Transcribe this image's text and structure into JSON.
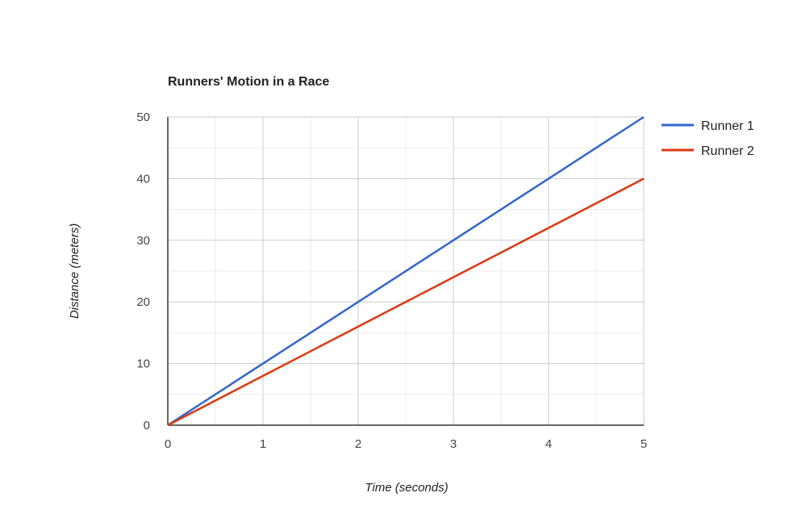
{
  "chart_data": {
    "type": "line",
    "title": "Runners' Motion in a Race",
    "xlabel": "Time (seconds)",
    "ylabel": "Distance (meters)",
    "xlim": [
      0,
      5
    ],
    "ylim": [
      0,
      50
    ],
    "xticks": [
      "0",
      "1",
      "2",
      "3",
      "4",
      "5"
    ],
    "yticks": [
      "0",
      "10",
      "20",
      "30",
      "40",
      "50"
    ],
    "grid": true,
    "legend_position": "right",
    "x": [
      0,
      1,
      2,
      3,
      4,
      5
    ],
    "series": [
      {
        "name": "Runner 1",
        "color": "#3366cc",
        "values": [
          0,
          10,
          20,
          30,
          40,
          50
        ]
      },
      {
        "name": "Runner 2",
        "color": "#dc3912",
        "values": [
          0,
          8,
          16,
          24,
          32,
          40
        ]
      }
    ]
  }
}
